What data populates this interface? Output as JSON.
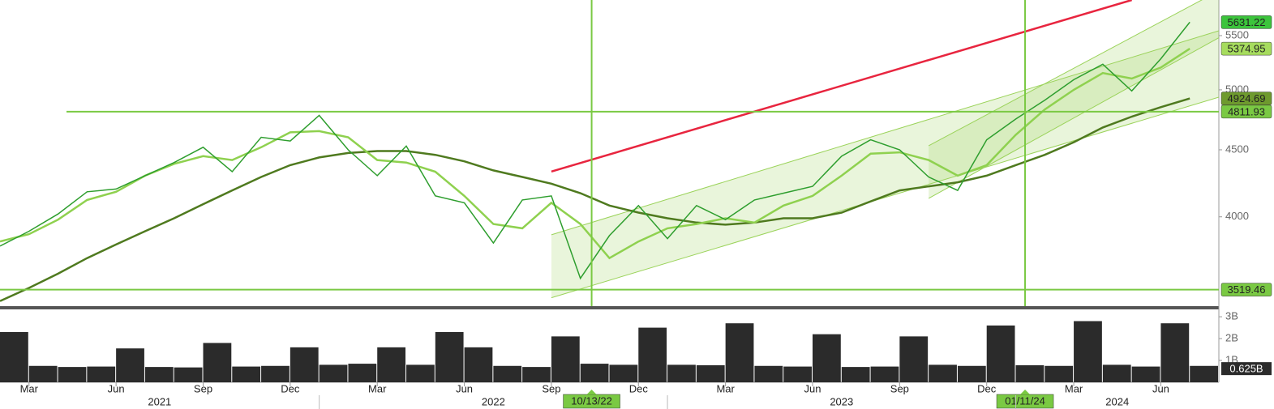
{
  "chart_data": {
    "type": "line",
    "x": [
      "2021-02",
      "2021-03",
      "2021-04",
      "2021-05",
      "2021-06",
      "2021-07",
      "2021-08",
      "2021-09",
      "2021-10",
      "2021-11",
      "2021-12",
      "2022-01",
      "2022-02",
      "2022-03",
      "2022-04",
      "2022-05",
      "2022-06",
      "2022-07",
      "2022-08",
      "2022-09",
      "2022-10",
      "2022-11",
      "2022-12",
      "2023-01",
      "2023-02",
      "2023-03",
      "2023-04",
      "2023-05",
      "2023-06",
      "2023-07",
      "2023-08",
      "2023-09",
      "2023-10",
      "2023-11",
      "2023-12",
      "2024-01",
      "2024-02",
      "2024-03",
      "2024-04",
      "2024-05",
      "2024-06",
      "2024-07"
    ],
    "xlim": [
      "2021-02",
      "2024-08"
    ],
    "xticks": [
      {
        "value": "2021-03",
        "label": "Mar"
      },
      {
        "value": "2021-06",
        "label": "Jun"
      },
      {
        "value": "2021-09",
        "label": "Sep"
      },
      {
        "value": "2021-12",
        "label": "Dec"
      },
      {
        "value": "2022-03",
        "label": "Mar"
      },
      {
        "value": "2022-06",
        "label": "Jun"
      },
      {
        "value": "2022-09",
        "label": "Sep"
      },
      {
        "value": "2022-12",
        "label": "Dec"
      },
      {
        "value": "2023-03",
        "label": "Mar"
      },
      {
        "value": "2023-06",
        "label": "Jun"
      },
      {
        "value": "2023-09",
        "label": "Sep"
      },
      {
        "value": "2023-12",
        "label": "Dec"
      },
      {
        "value": "2024-03",
        "label": "Mar"
      },
      {
        "value": "2024-06",
        "label": "Jun"
      }
    ],
    "years": [
      "2021",
      "2022",
      "2023",
      "2024"
    ],
    "ylim": [
      3419,
      5855
    ],
    "log": true,
    "yticks": [
      4000,
      4500,
      5000,
      5500
    ],
    "series": [
      {
        "color": "#2e9e2e",
        "tag_color": "#3cc43c",
        "values": [
          3800,
          3900,
          4020,
          4180,
          4200,
          4300,
          4400,
          4520,
          4330,
          4600,
          4570,
          4780,
          4500,
          4300,
          4530,
          4150,
          4100,
          3820,
          4120,
          4150,
          3590,
          3870,
          4080,
          3850,
          4080,
          3980,
          4120,
          4170,
          4220,
          4450,
          4580,
          4500,
          4290,
          4190,
          4580,
          4750,
          4910,
          5090,
          5230,
          4990,
          5280,
          5631.22
        ]
      },
      {
        "color": "#8fd14f",
        "tag_color": "#a6dc5e",
        "values": [
          3830,
          3880,
          3980,
          4120,
          4180,
          4300,
          4390,
          4450,
          4420,
          4520,
          4640,
          4650,
          4600,
          4420,
          4400,
          4330,
          4150,
          3950,
          3920,
          4100,
          3950,
          3720,
          3830,
          3920,
          3950,
          3990,
          3960,
          4080,
          4150,
          4300,
          4470,
          4480,
          4420,
          4300,
          4380,
          4620,
          4830,
          5000,
          5150,
          5100,
          5200,
          5374.95
        ]
      },
      {
        "color": "#4f7a1f",
        "tag_color": "#6e9a2e",
        "values": [
          3450,
          3530,
          3620,
          3720,
          3810,
          3900,
          3990,
          4090,
          4190,
          4290,
          4380,
          4440,
          4475,
          4490,
          4490,
          4460,
          4410,
          4340,
          4290,
          4240,
          4170,
          4080,
          4030,
          3990,
          3960,
          3945,
          3960,
          3990,
          3990,
          4030,
          4110,
          4190,
          4220,
          4250,
          4300,
          4380,
          4460,
          4560,
          4680,
          4770,
          4850,
          4924.69
        ]
      }
    ],
    "hlines": [
      {
        "value": 4811.93,
        "color": "#7ac943"
      },
      {
        "value": 3519.46,
        "color": "#7ac943"
      }
    ],
    "vlines": [
      "10/13/22",
      "01/11/24"
    ],
    "vline_color": "#7ac943",
    "trendlines": [
      {
        "x": [
          "2022-09",
          "2024-05"
        ],
        "values": [
          4331,
          5855
        ],
        "color": "#e8253f"
      }
    ],
    "channels": [
      {
        "x": [
          "2022-09",
          "2024-08"
        ],
        "lower": [
          3470,
          4936
        ],
        "upper": [
          3876,
          5547
        ],
        "color": "#9bd35a"
      },
      {
        "x": [
          "2023-10",
          "2024-08"
        ],
        "lower": [
          4132,
          5480
        ],
        "upper": [
          4532,
          5950
        ],
        "color": "#9bd35a"
      }
    ],
    "volume": {
      "values": [
        2.3,
        0.75,
        0.7,
        0.72,
        1.55,
        0.7,
        0.68,
        1.8,
        0.72,
        0.75,
        1.6,
        0.8,
        0.85,
        1.6,
        0.8,
        2.3,
        1.6,
        0.75,
        0.7,
        2.1,
        0.85,
        0.8,
        2.5,
        0.8,
        0.78,
        2.7,
        0.75,
        0.72,
        2.2,
        0.7,
        0.72,
        2.1,
        0.8,
        0.75,
        2.6,
        0.78,
        0.75,
        2.8,
        0.8,
        0.72,
        2.7,
        0.75
      ],
      "color": "#2b2b2b",
      "ylim": [
        0,
        3.3
      ],
      "yticks": [
        {
          "value": 1,
          "label": "1B"
        },
        {
          "value": 2,
          "label": "2B"
        },
        {
          "value": 3,
          "label": "3B"
        }
      ],
      "last": 0.625,
      "last_label": "0.625B"
    }
  }
}
